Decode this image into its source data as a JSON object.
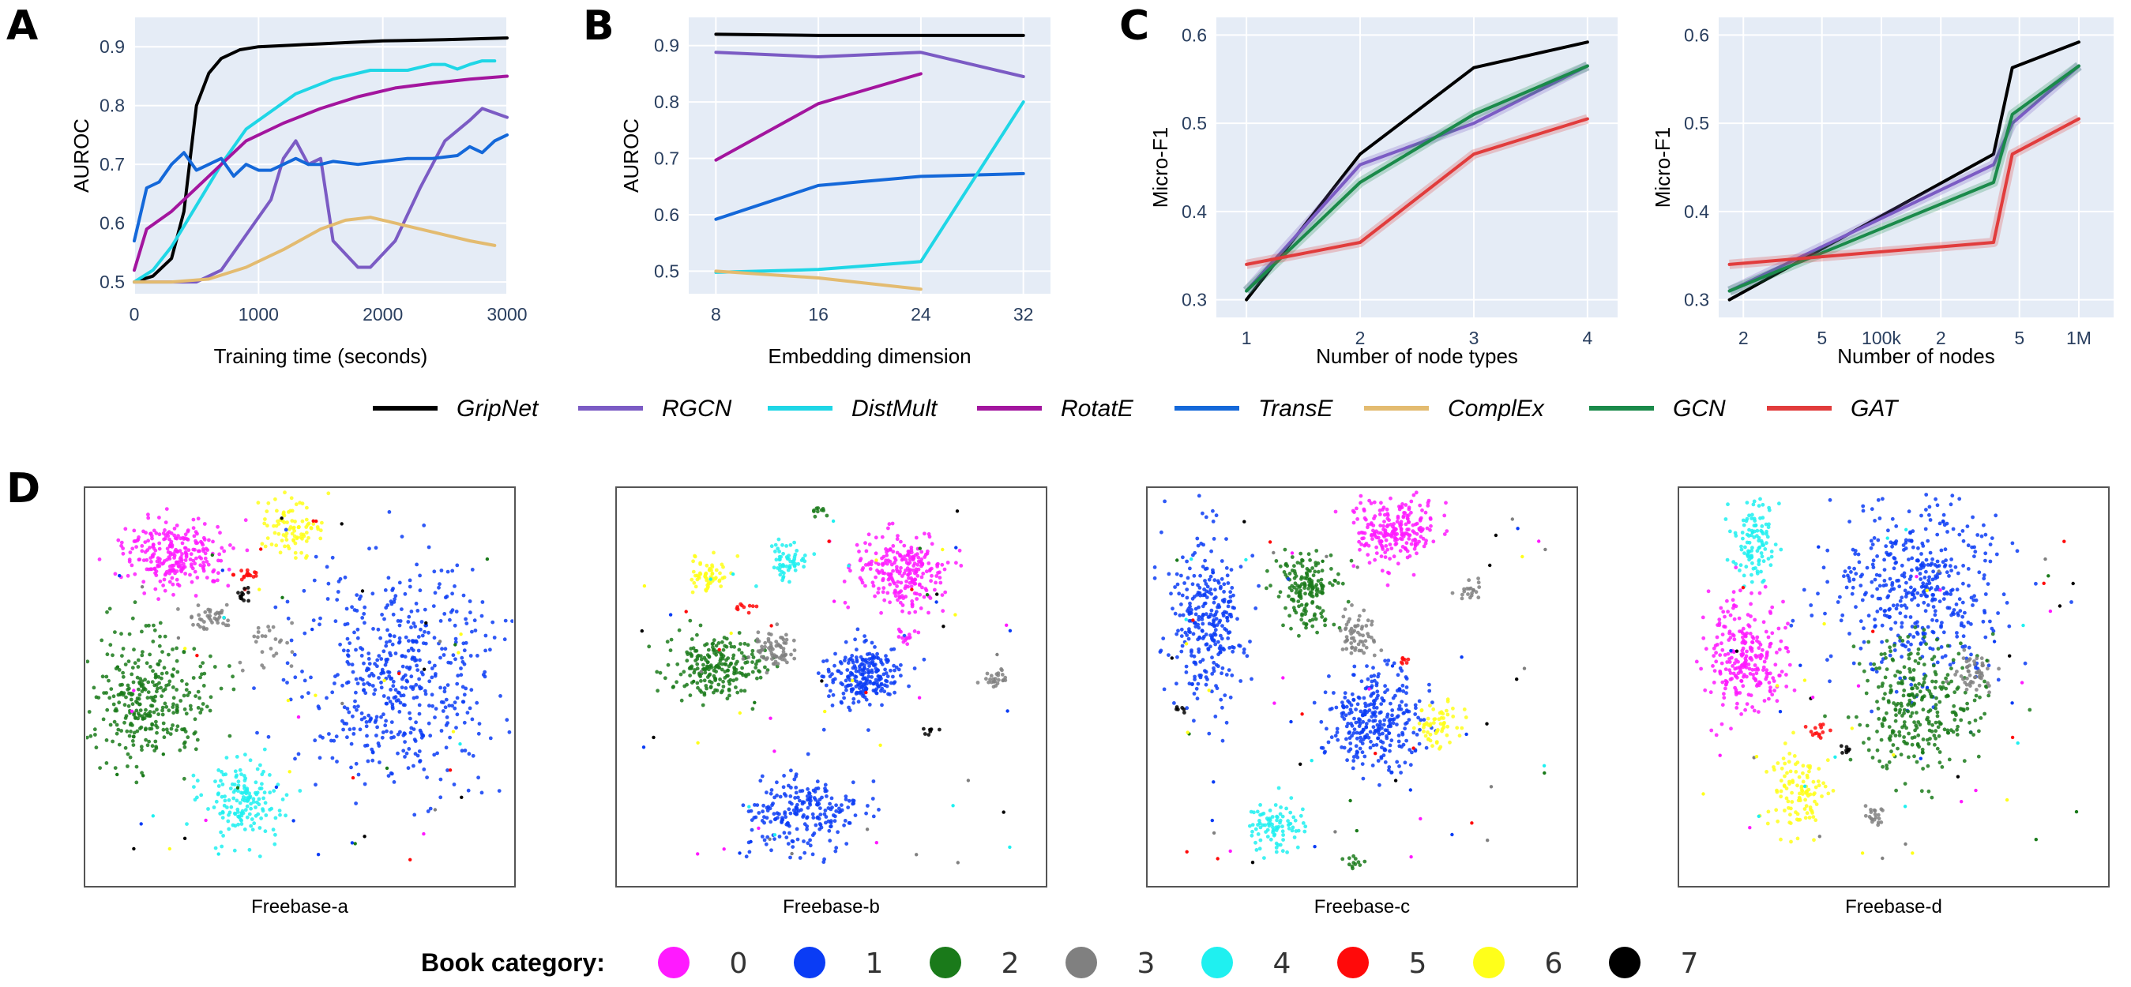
{
  "panels": {
    "A": "A",
    "B": "B",
    "C": "C",
    "D": "D"
  },
  "colors": {
    "GripNet": "#000000",
    "RGCN": "#7b5bc4",
    "DistMult": "#1fd6e6",
    "RotatE": "#a3159e",
    "TransE": "#1468d9",
    "ComplEx": "#e3bb70",
    "GCN": "#1a8a4a",
    "GAT": "#e13c3c"
  },
  "legend": [
    "GripNet",
    "RGCN",
    "DistMult",
    "RotatE",
    "TransE",
    "ComplEx",
    "GCN",
    "GAT"
  ],
  "chart_data": [
    {
      "id": "A",
      "type": "line",
      "xlabel": "Training time (seconds)",
      "ylabel": "AUROC",
      "xlim": [
        0,
        3000
      ],
      "ylim": [
        0.48,
        0.95
      ],
      "xticks": [
        0,
        1000,
        2000,
        3000
      ],
      "yticks": [
        0.5,
        0.6,
        0.7,
        0.8,
        0.9
      ],
      "series": [
        {
          "name": "GripNet",
          "x": [
            0,
            150,
            300,
            400,
            500,
            600,
            700,
            850,
            1000,
            1500,
            2000,
            2500,
            3000
          ],
          "y": [
            0.5,
            0.51,
            0.54,
            0.62,
            0.8,
            0.855,
            0.88,
            0.895,
            0.9,
            0.905,
            0.91,
            0.912,
            0.915
          ]
        },
        {
          "name": "RGCN",
          "x": [
            0,
            300,
            500,
            700,
            900,
            1100,
            1200,
            1300,
            1400,
            1500,
            1600,
            1800,
            1900,
            2100,
            2300,
            2500,
            2700,
            2800,
            3000
          ],
          "y": [
            0.5,
            0.5,
            0.5,
            0.52,
            0.58,
            0.64,
            0.71,
            0.74,
            0.7,
            0.71,
            0.57,
            0.525,
            0.525,
            0.57,
            0.66,
            0.74,
            0.775,
            0.795,
            0.78
          ]
        },
        {
          "name": "DistMult",
          "x": [
            0,
            150,
            300,
            500,
            700,
            900,
            1100,
            1300,
            1600,
            1900,
            2200,
            2400,
            2500,
            2600,
            2700,
            2800,
            2900
          ],
          "y": [
            0.5,
            0.52,
            0.56,
            0.63,
            0.7,
            0.76,
            0.79,
            0.82,
            0.845,
            0.86,
            0.86,
            0.87,
            0.87,
            0.862,
            0.87,
            0.876,
            0.876
          ]
        },
        {
          "name": "RotatE",
          "x": [
            0,
            100,
            300,
            500,
            700,
            900,
            1200,
            1500,
            1800,
            2100,
            2400,
            2700,
            3000
          ],
          "y": [
            0.52,
            0.59,
            0.62,
            0.66,
            0.7,
            0.74,
            0.77,
            0.795,
            0.815,
            0.83,
            0.838,
            0.845,
            0.85
          ]
        },
        {
          "name": "TransE",
          "x": [
            0,
            100,
            200,
            300,
            400,
            500,
            600,
            700,
            800,
            900,
            1000,
            1100,
            1200,
            1300,
            1400,
            1500,
            1600,
            1800,
            2000,
            2200,
            2400,
            2600,
            2700,
            2800,
            2900,
            3000
          ],
          "y": [
            0.57,
            0.66,
            0.67,
            0.7,
            0.72,
            0.69,
            0.7,
            0.71,
            0.68,
            0.7,
            0.69,
            0.69,
            0.7,
            0.71,
            0.7,
            0.7,
            0.705,
            0.7,
            0.705,
            0.71,
            0.71,
            0.715,
            0.73,
            0.72,
            0.74,
            0.75
          ]
        },
        {
          "name": "ComplEx",
          "x": [
            0,
            300,
            600,
            900,
            1200,
            1500,
            1700,
            1900,
            2100,
            2400,
            2700,
            2900
          ],
          "y": [
            0.5,
            0.5,
            0.505,
            0.525,
            0.555,
            0.59,
            0.605,
            0.61,
            0.6,
            0.585,
            0.57,
            0.562
          ]
        }
      ]
    },
    {
      "id": "B",
      "type": "line",
      "xlabel": "Embedding dimension",
      "ylabel": "AUROC",
      "categories": [
        "8",
        "16",
        "24",
        "32"
      ],
      "ylim": [
        0.46,
        0.95
      ],
      "yticks": [
        0.5,
        0.6,
        0.7,
        0.8,
        0.9
      ],
      "series": [
        {
          "name": "GripNet",
          "values": [
            0.92,
            0.918,
            0.918,
            0.918
          ]
        },
        {
          "name": "RGCN",
          "values": [
            0.888,
            0.88,
            0.888,
            0.845
          ]
        },
        {
          "name": "RotatE",
          "values": [
            0.697,
            0.797,
            0.85,
            null
          ]
        },
        {
          "name": "TransE",
          "values": [
            0.592,
            0.652,
            0.668,
            0.673
          ]
        },
        {
          "name": "DistMult",
          "values": [
            0.498,
            0.503,
            0.517,
            0.8
          ]
        },
        {
          "name": "ComplEx",
          "values": [
            0.5,
            0.488,
            0.468,
            null
          ]
        }
      ]
    },
    {
      "id": "C-left",
      "type": "line",
      "xlabel": "Number of node types",
      "ylabel": "Micro-F1",
      "categories": [
        "1",
        "2",
        "3",
        "4"
      ],
      "ylim": [
        0.28,
        0.62
      ],
      "yticks": [
        0.3,
        0.4,
        0.5,
        0.6
      ],
      "series": [
        {
          "name": "GripNet",
          "values": [
            0.3,
            0.465,
            0.563,
            0.592
          ]
        },
        {
          "name": "RGCN",
          "values": [
            0.31,
            0.453,
            0.5,
            0.565
          ]
        },
        {
          "name": "GCN",
          "values": [
            0.31,
            0.433,
            0.51,
            0.565
          ]
        },
        {
          "name": "GAT",
          "values": [
            0.34,
            0.365,
            0.465,
            0.505
          ]
        }
      ]
    },
    {
      "id": "C-right",
      "type": "line",
      "xlabel": "Number of nodes",
      "ylabel": "Micro-F1",
      "xscale": "log",
      "xlim": [
        15000,
        1500000
      ],
      "xticks": [
        {
          "v": 20000,
          "label": "2"
        },
        {
          "v": 50000,
          "label": "5"
        },
        {
          "v": 100000,
          "label": "100k"
        },
        {
          "v": 200000,
          "label": "2"
        },
        {
          "v": 500000,
          "label": "5"
        },
        {
          "v": 1000000,
          "label": "1M"
        }
      ],
      "ylim": [
        0.28,
        0.62
      ],
      "yticks": [
        0.3,
        0.4,
        0.5,
        0.6
      ],
      "series": [
        {
          "name": "GripNet",
          "x": [
            17000,
            370000,
            460000,
            1000000
          ],
          "y": [
            0.3,
            0.465,
            0.563,
            0.592
          ]
        },
        {
          "name": "RGCN",
          "x": [
            17000,
            370000,
            460000,
            1000000
          ],
          "y": [
            0.31,
            0.453,
            0.5,
            0.565
          ]
        },
        {
          "name": "GCN",
          "x": [
            17000,
            370000,
            460000,
            1000000
          ],
          "y": [
            0.31,
            0.433,
            0.51,
            0.565
          ]
        },
        {
          "name": "GAT",
          "x": [
            17000,
            370000,
            460000,
            1000000
          ],
          "y": [
            0.34,
            0.365,
            0.465,
            0.505
          ]
        }
      ]
    }
  ],
  "tsne": {
    "plots": [
      {
        "title": "Freebase-a"
      },
      {
        "title": "Freebase-b"
      },
      {
        "title": "Freebase-c"
      },
      {
        "title": "Freebase-d"
      }
    ],
    "category_title": "Book category:",
    "categories": [
      {
        "label": "0",
        "color": "#ff1aff"
      },
      {
        "label": "1",
        "color": "#0a3cf5"
      },
      {
        "label": "2",
        "color": "#1a7a1a"
      },
      {
        "label": "3",
        "color": "#808080"
      },
      {
        "label": "4",
        "color": "#1ff0f0"
      },
      {
        "label": "5",
        "color": "#ff0a0a"
      },
      {
        "label": "6",
        "color": "#ffff1a"
      },
      {
        "label": "7",
        "color": "#000000"
      }
    ]
  }
}
